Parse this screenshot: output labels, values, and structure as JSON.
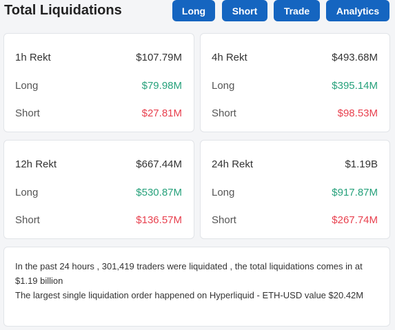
{
  "header": {
    "title": "Total Liquidations",
    "buttons": {
      "long": "Long",
      "short": "Short",
      "trade": "Trade",
      "analytics": "Analytics"
    }
  },
  "cards": [
    {
      "label": "1h Rekt",
      "total": "$107.79M",
      "long_label": "Long",
      "long": "$79.98M",
      "short_label": "Short",
      "short": "$27.81M"
    },
    {
      "label": "4h Rekt",
      "total": "$493.68M",
      "long_label": "Long",
      "long": "$395.14M",
      "short_label": "Short",
      "short": "$98.53M"
    },
    {
      "label": "12h Rekt",
      "total": "$667.44M",
      "long_label": "Long",
      "long": "$530.87M",
      "short_label": "Short",
      "short": "$136.57M"
    },
    {
      "label": "24h Rekt",
      "total": "$1.19B",
      "long_label": "Long",
      "long": "$917.87M",
      "short_label": "Short",
      "short": "$267.74M"
    }
  ],
  "summary": {
    "line1": "In the past 24 hours , 301,419 traders were liquidated , the total liquidations comes in at $1.19 billion",
    "line2": "The largest single liquidation order happened on Hyperliquid - ETH-USD value $20.42M"
  },
  "colors": {
    "accent": "#1565c0",
    "long": "#26a17b",
    "short": "#e8404e"
  }
}
